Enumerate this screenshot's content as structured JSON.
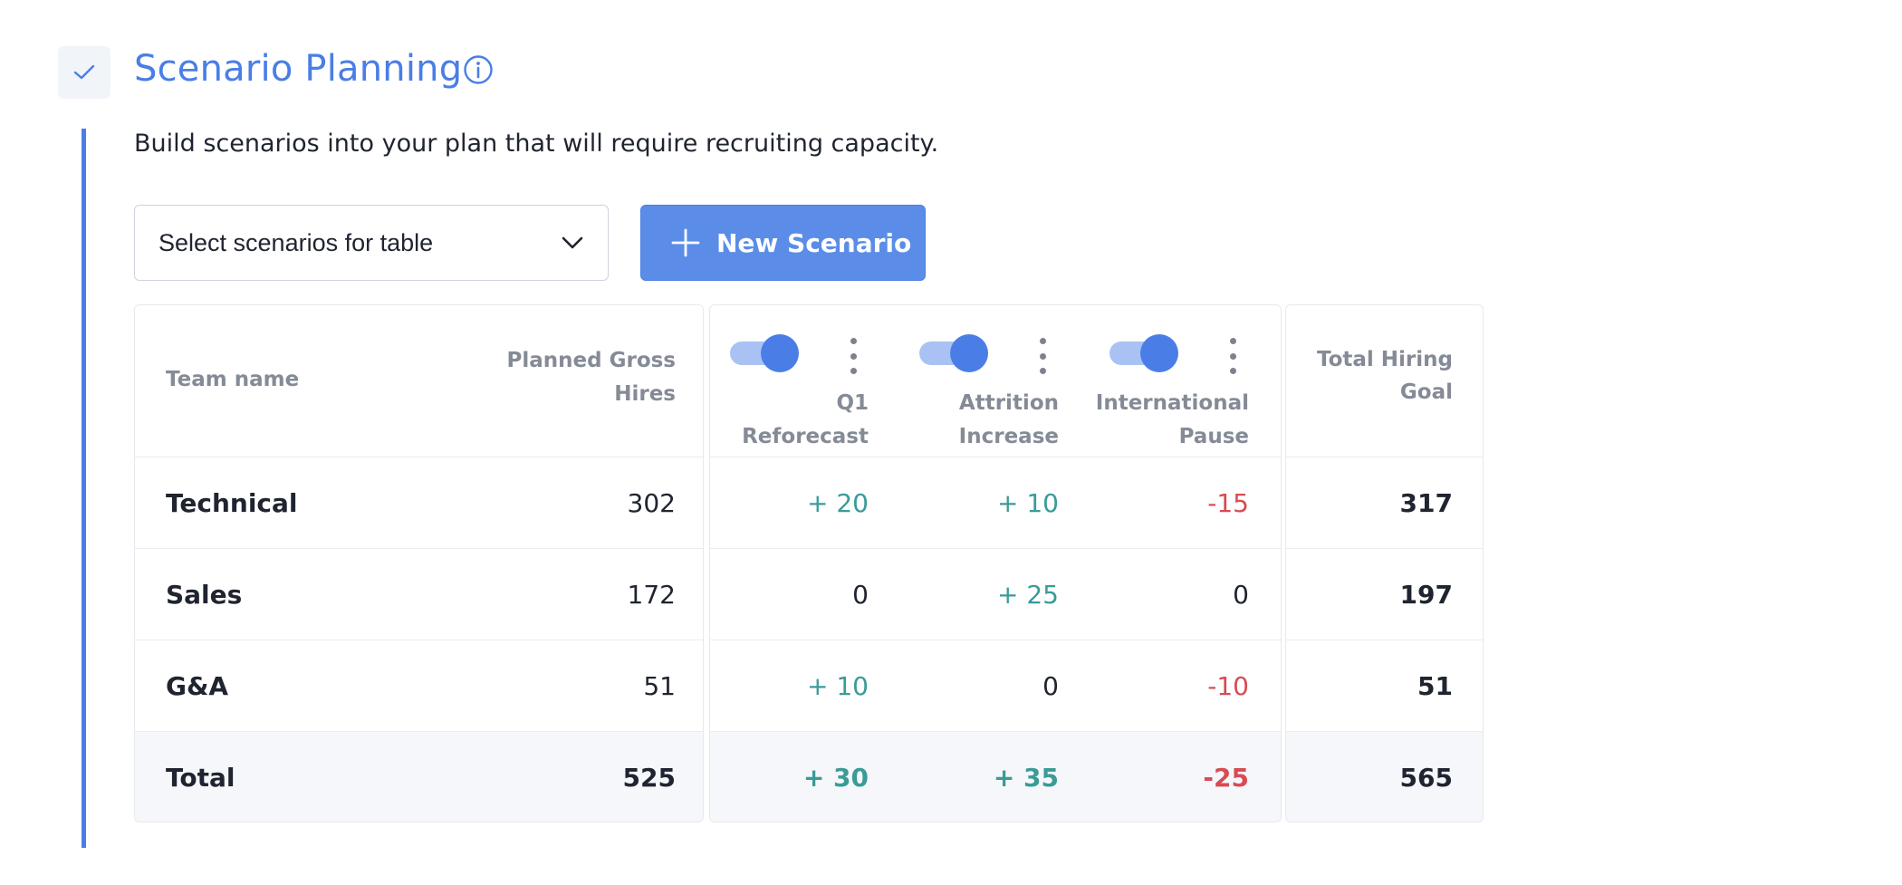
{
  "section": {
    "title": "Scenario Planning",
    "subtitle": "Build scenarios into your plan that will require recruiting capacity."
  },
  "controls": {
    "select_label": "Select scenarios for table",
    "new_scenario_label": "New Scenario"
  },
  "table": {
    "headers": {
      "team_name": "Team name",
      "planned_line1": "Planned Gross",
      "planned_line2": "Hires",
      "total_line1": "Total Hiring",
      "total_line2": "Goal"
    },
    "scenarios": [
      {
        "line1": "Q1",
        "line2": "Reforecast",
        "enabled": true
      },
      {
        "line1": "Attrition",
        "line2": "Increase",
        "enabled": true
      },
      {
        "line1": "International",
        "line2": "Pause",
        "enabled": true
      }
    ],
    "rows": [
      {
        "team": "Technical",
        "planned": "302",
        "s1": "+ 20",
        "s2": "+ 10",
        "s3": "-15",
        "total": "317"
      },
      {
        "team": "Sales",
        "planned": "172",
        "s1": "0",
        "s2": "+ 25",
        "s3": "0",
        "total": "197"
      },
      {
        "team": "G&A",
        "planned": "51",
        "s1": "+ 10",
        "s2": "0",
        "s3": "-10",
        "total": "51"
      }
    ],
    "totals": {
      "label": "Total",
      "planned": "525",
      "s1": "+ 30",
      "s2": "+ 35",
      "s3": "-25",
      "total": "565"
    }
  },
  "colors": {
    "accent": "#4a7ee6",
    "positive": "#3a9b97",
    "negative": "#d94b52"
  },
  "icons": {
    "section_check": "check-icon",
    "info": "info-icon",
    "dropdown": "chevron-down-icon",
    "add": "plus-icon",
    "scenario_menu": "kebab-menu-icon"
  }
}
